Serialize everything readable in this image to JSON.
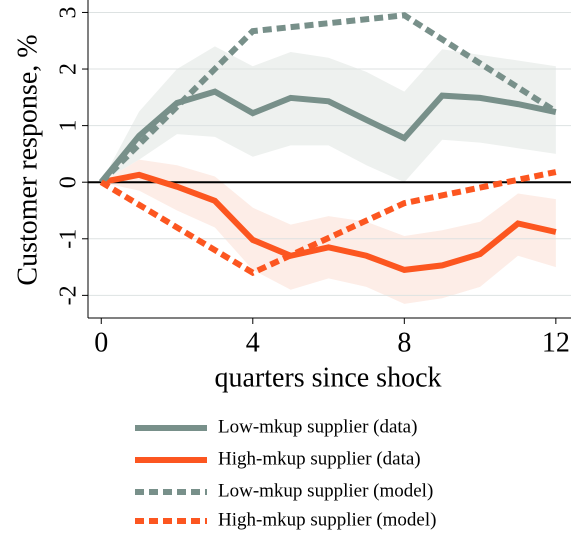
{
  "chart_data": {
    "type": "line",
    "ylabel": "Customer response, %",
    "xlabel": "quarters since shock",
    "xlim": [
      -0.35,
      12.4
    ],
    "xticks": [
      0,
      4,
      8,
      12
    ],
    "ylim": [
      -2.4,
      3.22
    ],
    "yticks": [
      -2,
      -1,
      0,
      1,
      2,
      3
    ],
    "grid": true,
    "series": [
      {
        "name": "Low-mkup supplier (data)",
        "color": "#78908a",
        "dash": false,
        "x": [
          0,
          1,
          2,
          3,
          4,
          5,
          6,
          7,
          8,
          9,
          10,
          11,
          12
        ],
        "values": [
          0,
          0.82,
          1.4,
          1.6,
          1.22,
          1.49,
          1.43,
          1.1,
          0.78,
          1.53,
          1.49,
          1.38,
          1.24
        ],
        "band": {
          "color": "#eef1ef",
          "upper": [
            0,
            1.25,
            2.0,
            2.4,
            2.05,
            2.3,
            2.2,
            1.95,
            1.6,
            2.35,
            2.25,
            2.15,
            2.05
          ],
          "lower": [
            0,
            0.4,
            0.85,
            0.8,
            0.45,
            0.65,
            0.65,
            0.3,
            0.0,
            0.75,
            0.7,
            0.6,
            0.5
          ]
        }
      },
      {
        "name": "High-mkup supplier (data)",
        "color": "#fc5620",
        "dash": false,
        "x": [
          0,
          1,
          2,
          3,
          4,
          5,
          6,
          7,
          8,
          9,
          10,
          11,
          12
        ],
        "values": [
          0,
          0.13,
          -0.08,
          -0.33,
          -1.02,
          -1.3,
          -1.15,
          -1.3,
          -1.55,
          -1.47,
          -1.27,
          -0.73,
          -0.88
        ],
        "band": {
          "color": "#fdede7",
          "upper": [
            0,
            0.4,
            0.3,
            0.1,
            -0.45,
            -0.75,
            -0.6,
            -0.7,
            -0.95,
            -0.85,
            -0.7,
            -0.2,
            -0.3
          ],
          "lower": [
            0,
            -0.15,
            -0.5,
            -0.8,
            -1.55,
            -1.9,
            -1.7,
            -1.85,
            -2.15,
            -2.05,
            -1.85,
            -1.3,
            -1.5
          ]
        }
      },
      {
        "name": "Low-mkup supplier (model)",
        "color": "#78908a",
        "dash": true,
        "x": [
          0,
          4,
          8,
          12
        ],
        "values": [
          0,
          2.67,
          2.95,
          1.25
        ]
      },
      {
        "name": "High-mkup supplier (model)",
        "color": "#fc5620",
        "dash": true,
        "x": [
          0,
          4,
          8,
          12
        ],
        "values": [
          0,
          -1.6,
          -0.37,
          0.18
        ]
      }
    ]
  }
}
